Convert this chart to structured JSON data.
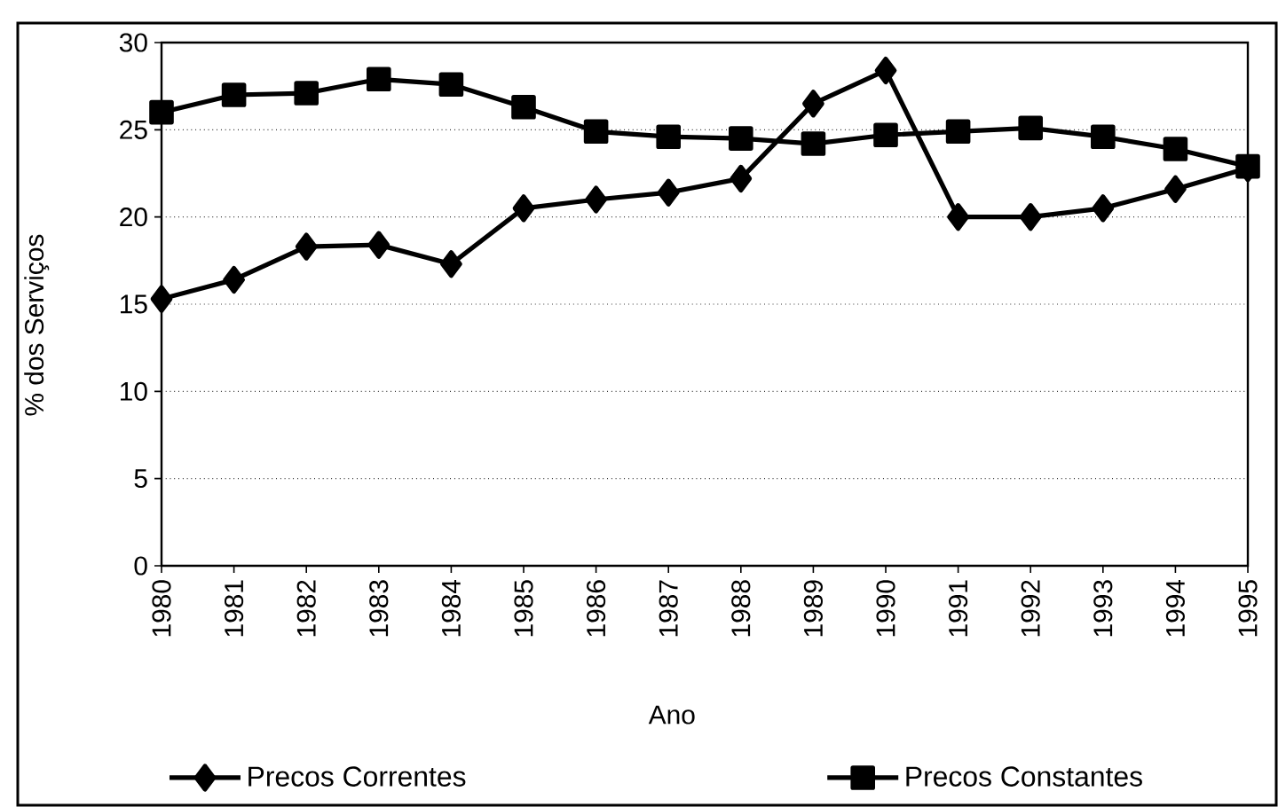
{
  "chart_data": {
    "type": "line",
    "xlabel": "Ano",
    "ylabel": "% dos Serviços",
    "categories": [
      "1980",
      "1981",
      "1982",
      "1983",
      "1984",
      "1985",
      "1986",
      "1987",
      "1988",
      "1989",
      "1990",
      "1991",
      "1992",
      "1993",
      "1994",
      "1995"
    ],
    "series": [
      {
        "name": "Precos Correntes",
        "color": "#000000",
        "marker": "diamond",
        "values": [
          15.3,
          16.4,
          18.3,
          18.4,
          17.3,
          20.5,
          21.0,
          21.4,
          22.2,
          26.5,
          28.4,
          20.0,
          20.0,
          20.5,
          21.6,
          22.8
        ]
      },
      {
        "name": "Precos Constantes",
        "color": "#000000",
        "marker": "square",
        "values": [
          26.0,
          27.0,
          27.1,
          27.9,
          27.6,
          26.3,
          24.9,
          24.6,
          24.5,
          24.2,
          24.7,
          24.9,
          25.1,
          24.6,
          23.9,
          22.9
        ]
      }
    ],
    "ylim": [
      0,
      30
    ],
    "yticks": [
      0,
      5,
      10,
      15,
      20,
      25,
      30
    ],
    "grid": "y",
    "legend": "bottom",
    "line_style": "solid"
  }
}
